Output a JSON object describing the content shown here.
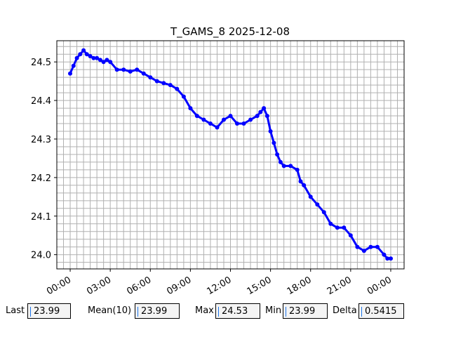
{
  "chart_data": {
    "type": "scatter",
    "title": "T_GAMS_8 2025-12-08",
    "xlabel": "",
    "ylabel": "",
    "x_ticks": [
      "00:00",
      "03:00",
      "06:00",
      "09:00",
      "12:00",
      "15:00",
      "18:00",
      "21:00",
      "00:00"
    ],
    "y_ticks": [
      "24.0",
      "24.1",
      "24.2",
      "24.3",
      "24.4",
      "24.5"
    ],
    "xlim_hours": [
      -1.0,
      25.0
    ],
    "ylim": [
      23.963,
      24.555
    ],
    "grid": true,
    "series_color": "#0000ff",
    "x_hours": [
      0.0,
      0.25,
      0.5,
      0.75,
      1.0,
      1.25,
      1.5,
      1.75,
      2.0,
      2.25,
      2.5,
      2.75,
      3.0,
      3.5,
      4.0,
      4.5,
      5.0,
      5.5,
      6.0,
      6.5,
      7.0,
      7.5,
      8.0,
      8.5,
      9.0,
      9.5,
      10.0,
      10.5,
      11.0,
      11.5,
      12.0,
      12.5,
      13.0,
      13.5,
      14.0,
      14.25,
      14.5,
      14.75,
      15.0,
      15.25,
      15.5,
      15.75,
      16.0,
      16.5,
      17.0,
      17.25,
      17.5,
      18.0,
      18.5,
      19.0,
      19.5,
      20.0,
      20.5,
      21.0,
      21.5,
      22.0,
      22.5,
      23.0,
      23.5,
      23.75,
      24.0
    ],
    "y_values": [
      24.47,
      24.49,
      24.51,
      24.52,
      24.53,
      24.52,
      24.515,
      24.51,
      24.51,
      24.505,
      24.5,
      24.505,
      24.5,
      24.48,
      24.48,
      24.475,
      24.48,
      24.47,
      24.46,
      24.45,
      24.445,
      24.44,
      24.43,
      24.41,
      24.38,
      24.36,
      24.35,
      24.34,
      24.33,
      24.35,
      24.36,
      24.34,
      24.34,
      24.35,
      24.36,
      24.37,
      24.38,
      24.36,
      24.32,
      24.29,
      24.26,
      24.24,
      24.23,
      24.23,
      24.22,
      24.19,
      24.18,
      24.15,
      24.13,
      24.11,
      24.08,
      24.07,
      24.07,
      24.05,
      24.02,
      24.01,
      24.02,
      24.02,
      24.0,
      23.99,
      23.99
    ]
  },
  "stats": {
    "last_label": "Last",
    "last_value": "23.99",
    "mean_label": "Mean(10)",
    "mean_value": "23.99",
    "max_label": "Max",
    "max_value": "24.53",
    "min_label": "Min",
    "min_value": "23.99",
    "delta_label": "Delta",
    "delta_value": "0.5415"
  }
}
